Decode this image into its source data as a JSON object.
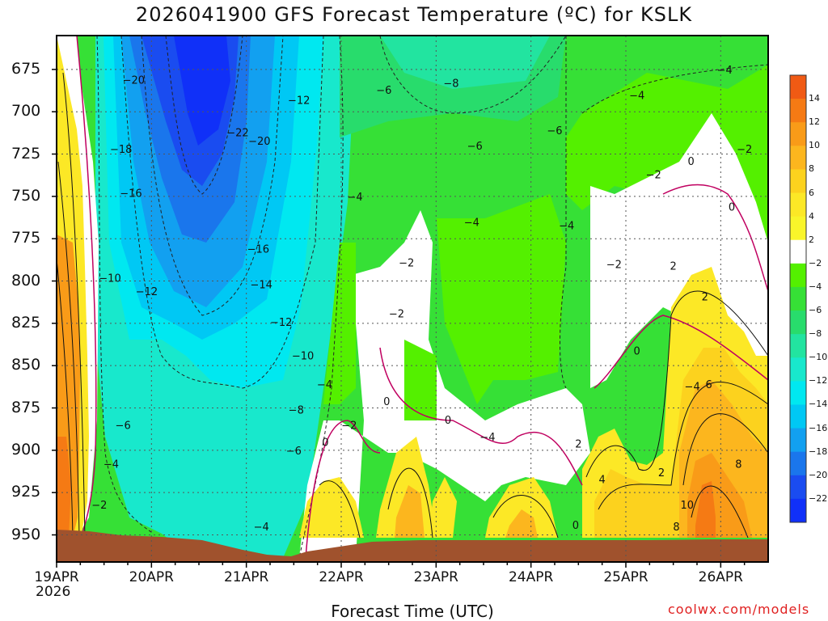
{
  "page": {
    "title": "2026041900 GFS Forecast Temperature (ºC) for KSLK",
    "credit": "coolwx.com/models"
  },
  "chart_data": {
    "type": "heatmap",
    "title": "2026041900 GFS Forecast Temperature (ºC) for KSLK",
    "xlabel": "Forecast Time (UTC)",
    "ylabel": "",
    "x_ticks": [
      "19APR",
      "20APR",
      "21APR",
      "22APR",
      "23APR",
      "24APR",
      "25APR",
      "26APR"
    ],
    "x_tick_hours": [
      0,
      24,
      48,
      72,
      96,
      120,
      144,
      168
    ],
    "year_label": "2026",
    "x_range_hours": [
      0,
      180
    ],
    "y_ticks": [
      "675",
      "700",
      "725",
      "750",
      "775",
      "800",
      "825",
      "850",
      "875",
      "900",
      "925",
      "950"
    ],
    "y_tick_values": [
      675,
      700,
      725,
      750,
      775,
      800,
      825,
      850,
      875,
      900,
      925,
      950
    ],
    "y_range_mb": [
      655,
      966
    ],
    "colorbar": {
      "labels": [
        "14",
        "12",
        "10",
        "8",
        "6",
        "4",
        "2",
        "-2",
        "-4",
        "-6",
        "-8",
        "-10",
        "-12",
        "-14",
        "-16",
        "-18",
        "-20",
        "-22"
      ],
      "colors": [
        "#f05a14",
        "#f57a14",
        "#f99b18",
        "#fcb61e",
        "#fcd21e",
        "#fce826",
        "#f9f52a",
        "#ffffff",
        "#54f000",
        "#36e036",
        "#28dc6c",
        "#22e4a0",
        "#18e8cc",
        "#00e8f0",
        "#00c8f4",
        "#12a0f0",
        "#1a76ec",
        "#1a4cf0",
        "#1030f8"
      ]
    },
    "contour_labels": [
      {
        "t": 19.5,
        "p": 681,
        "label": "-20"
      },
      {
        "t": 45.8,
        "p": 712,
        "label": "-22"
      },
      {
        "t": 16.3,
        "p": 722,
        "label": "-18"
      },
      {
        "t": 51.3,
        "p": 717,
        "label": "-20"
      },
      {
        "t": 18.8,
        "p": 748,
        "label": "-16"
      },
      {
        "t": 51.0,
        "p": 781,
        "label": "-16"
      },
      {
        "t": 22.8,
        "p": 806,
        "label": "-12"
      },
      {
        "t": 13.5,
        "p": 798,
        "label": "-10"
      },
      {
        "t": 51.8,
        "p": 802,
        "label": "-14"
      },
      {
        "t": 56.8,
        "p": 824,
        "label": "-12"
      },
      {
        "t": 61.3,
        "p": 693,
        "label": "-12"
      },
      {
        "t": 62.3,
        "p": 844,
        "label": "-10"
      },
      {
        "t": 60.6,
        "p": 876,
        "label": "-8"
      },
      {
        "t": 60.0,
        "p": 900,
        "label": "-6"
      },
      {
        "t": 75.5,
        "p": 750,
        "label": "-4"
      },
      {
        "t": 82.8,
        "p": 687,
        "label": "-6"
      },
      {
        "t": 99.8,
        "p": 683,
        "label": "-8"
      },
      {
        "t": 105.0,
        "p": 765,
        "label": "-4"
      },
      {
        "t": 105.8,
        "p": 720,
        "label": "-6"
      },
      {
        "t": 126.0,
        "p": 711,
        "label": "-6"
      },
      {
        "t": 129.0,
        "p": 767,
        "label": "-4"
      },
      {
        "t": 146.8,
        "p": 690,
        "label": "-4"
      },
      {
        "t": 169.0,
        "p": 675,
        "label": "-4"
      },
      {
        "t": 67.8,
        "p": 861,
        "label": "-4"
      },
      {
        "t": 16.8,
        "p": 885,
        "label": "-6"
      },
      {
        "t": 13.8,
        "p": 908,
        "label": "-4"
      },
      {
        "t": 10.8,
        "p": 932,
        "label": "-2"
      },
      {
        "t": 51.8,
        "p": 945,
        "label": "-4"
      },
      {
        "t": 88.5,
        "p": 789,
        "label": "-2"
      },
      {
        "t": 86.0,
        "p": 819,
        "label": "-2"
      },
      {
        "t": 74.0,
        "p": 885,
        "label": "-2"
      },
      {
        "t": 68.0,
        "p": 895,
        "label": "0"
      },
      {
        "t": 83.5,
        "p": 871,
        "label": "0"
      },
      {
        "t": 99.0,
        "p": 882,
        "label": "0"
      },
      {
        "t": 109.0,
        "p": 892,
        "label": "-4"
      },
      {
        "t": 141.0,
        "p": 790,
        "label": "-2"
      },
      {
        "t": 151.0,
        "p": 737,
        "label": "-2"
      },
      {
        "t": 160.5,
        "p": 729,
        "label": "0"
      },
      {
        "t": 170.8,
        "p": 756,
        "label": "0"
      },
      {
        "t": 174.0,
        "p": 722,
        "label": "-2"
      },
      {
        "t": 156.0,
        "p": 791,
        "label": "2"
      },
      {
        "t": 164.0,
        "p": 809,
        "label": "2"
      },
      {
        "t": 146.8,
        "p": 841,
        "label": "0"
      },
      {
        "t": 160.8,
        "p": 862,
        "label": "-4"
      },
      {
        "t": 165.0,
        "p": 861,
        "label": "6"
      },
      {
        "t": 132.0,
        "p": 896,
        "label": "2"
      },
      {
        "t": 138.0,
        "p": 917,
        "label": "4"
      },
      {
        "t": 153.0,
        "p": 913,
        "label": "2"
      },
      {
        "t": 131.3,
        "p": 944,
        "label": "0"
      },
      {
        "t": 159.5,
        "p": 932,
        "label": "10"
      },
      {
        "t": 156.8,
        "p": 945,
        "label": "8"
      },
      {
        "t": 172.5,
        "p": 908,
        "label": "8"
      }
    ]
  }
}
